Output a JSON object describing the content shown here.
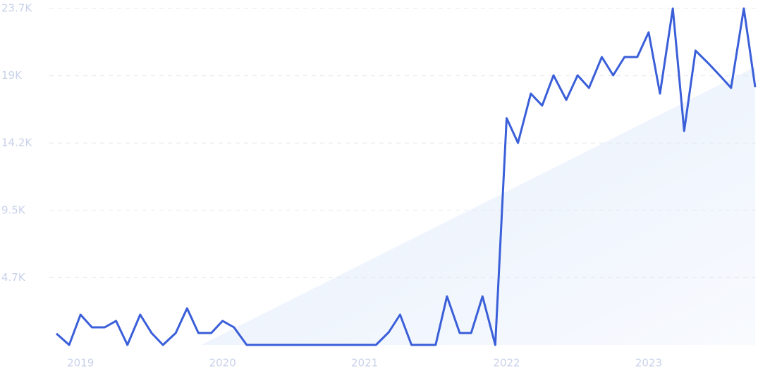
{
  "chart_data": {
    "type": "line",
    "x": [
      2018.83,
      2018.92,
      2019.0,
      2019.08,
      2019.17,
      2019.25,
      2019.33,
      2019.42,
      2019.5,
      2019.58,
      2019.67,
      2019.75,
      2019.83,
      2019.92,
      2020.0,
      2020.08,
      2020.17,
      2020.25,
      2020.33,
      2020.42,
      2020.5,
      2020.58,
      2020.67,
      2020.75,
      2020.83,
      2020.92,
      2021.0,
      2021.08,
      2021.17,
      2021.25,
      2021.33,
      2021.42,
      2021.5,
      2021.58,
      2021.67,
      2021.75,
      2021.83,
      2021.92,
      2022.0,
      2022.08,
      2022.17,
      2022.25,
      2022.33,
      2022.42,
      2022.5,
      2022.58,
      2022.67,
      2022.75,
      2022.83,
      2022.92,
      2023.0,
      2023.08,
      2023.17,
      2023.25,
      2023.33,
      2023.42,
      2023.5,
      2023.58,
      2023.67,
      2023.75
    ],
    "series": [
      {
        "color": "#3a5fd9",
        "values": [
          800,
          0,
          2130,
          1240,
          1240,
          1690,
          0,
          2130,
          840,
          0,
          840,
          2580,
          840,
          840,
          1690,
          1240,
          0,
          0,
          0,
          0,
          0,
          0,
          0,
          0,
          0,
          0,
          0,
          0,
          890,
          2130,
          0,
          0,
          0,
          3420,
          840,
          840,
          3420,
          0,
          15970,
          14230,
          17700,
          16860,
          18990,
          17260,
          18990,
          18100,
          20280,
          18990,
          20280,
          20280,
          22020,
          17700,
          23700,
          15070,
          20730,
          19840,
          18990,
          18100,
          23700,
          18150
        ]
      }
    ],
    "xlim": [
      2018.83,
      2023.75
    ],
    "xticks": [
      2019,
      2020,
      2021,
      2022,
      2023
    ],
    "ylim": [
      0,
      23700
    ],
    "yticks": [
      {
        "value": 4740,
        "label": "4.7K"
      },
      {
        "value": 9480,
        "label": "9.5K"
      },
      {
        "value": 14220,
        "label": "14.2K"
      },
      {
        "value": 18960,
        "label": "19K"
      },
      {
        "value": 23700,
        "label": "23.7K"
      }
    ],
    "grid": true
  }
}
